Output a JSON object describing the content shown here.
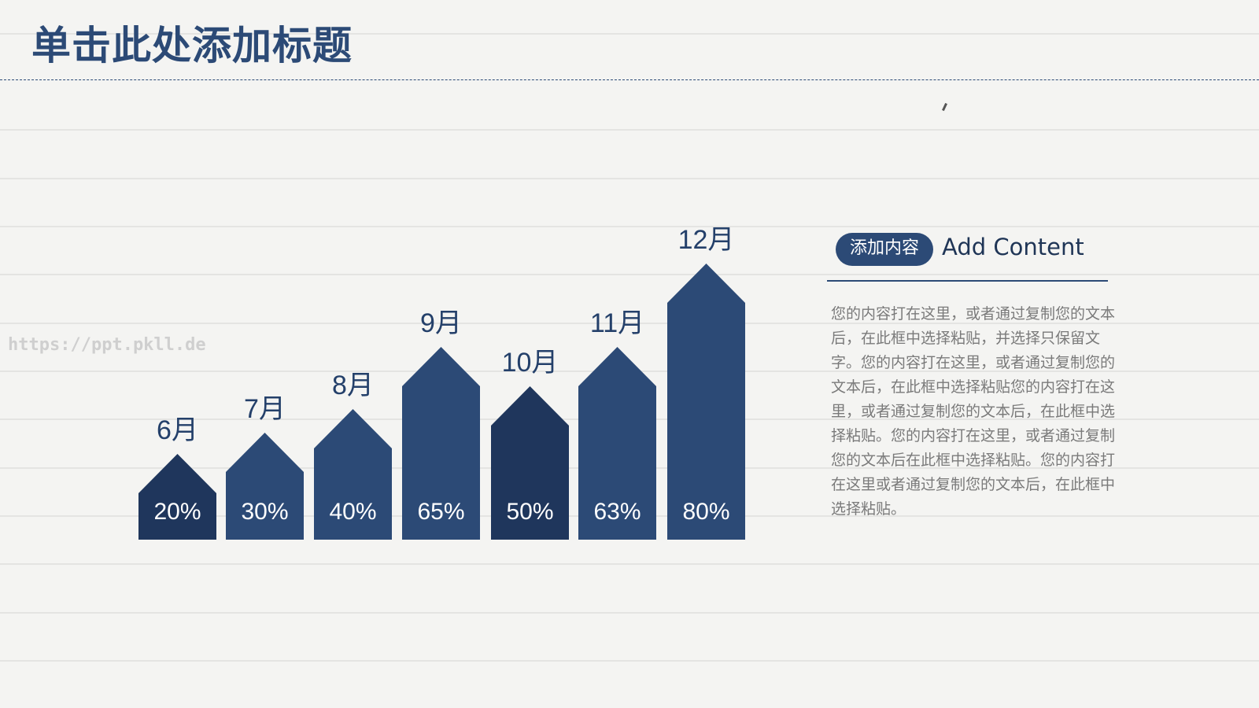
{
  "slide": {
    "title": "单击此处添加标题",
    "watermark": "https://ppt.pkll.de"
  },
  "side_panel": {
    "tag_label": "添加内容",
    "heading": "Add Content",
    "body": "您的内容打在这里，或者通过复制您的文本后，在此框中选择粘贴，并选择只保留文字。您的内容打在这里，或者通过复制您的文本后，在此框中选择粘贴您的内容打在这里，或者通过复制您的文本后，在此框中选择粘贴。您的内容打在这里，或者通过复制您的文本后在此框中选择粘贴。您的内容打在这里或者通过复制您的文本后，在此框中选择粘贴。"
  },
  "colors": {
    "primary": "#2c4a76",
    "dark": "#1f365c",
    "background": "#f4f4f2",
    "body_text": "#7a7a7a"
  },
  "chart_data": {
    "type": "bar",
    "title": "",
    "xlabel": "",
    "ylabel": "",
    "categories": [
      "6月",
      "7月",
      "8月",
      "9月",
      "10月",
      "11月",
      "12月"
    ],
    "values": [
      20,
      30,
      40,
      65,
      50,
      63,
      80
    ],
    "value_labels": [
      "20%",
      "30%",
      "40%",
      "65%",
      "50%",
      "63%",
      "80%"
    ],
    "ylim": [
      0,
      100
    ],
    "grid": false,
    "legend": null,
    "bar_shape": "house-arrow",
    "bar_colors": [
      "#1f365c",
      "#2c4a76",
      "#2c4a76",
      "#2c4a76",
      "#1f365c",
      "#2c4a76",
      "#2c4a76"
    ]
  }
}
